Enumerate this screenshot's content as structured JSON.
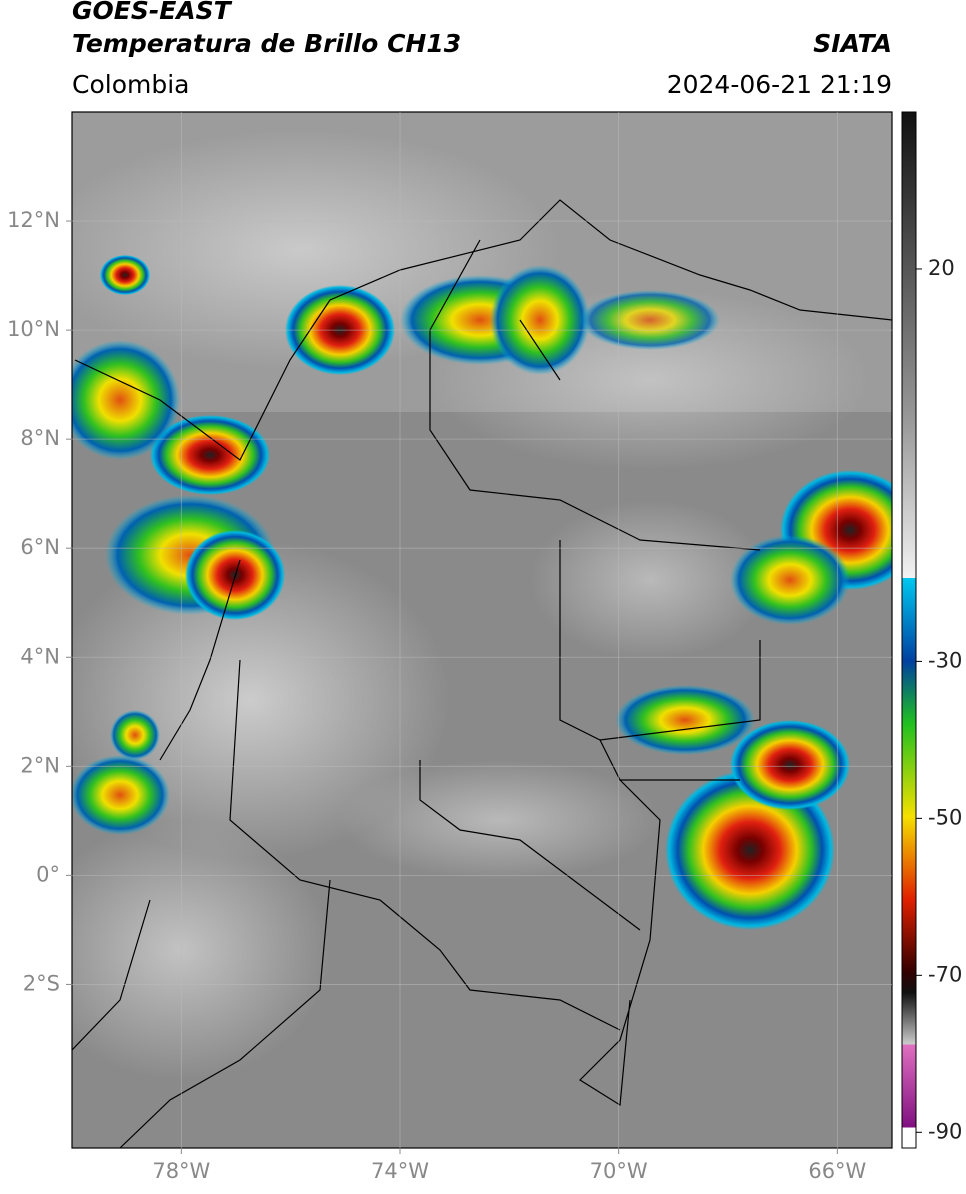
{
  "header": {
    "title": "GOES-EAST",
    "subtitle": "Temperatura de Brillo CH13",
    "region": "Colombia",
    "source": "SIATA",
    "datetime": "2024-06-21 21:19"
  },
  "map": {
    "lonlim": [
      -80,
      -65
    ],
    "latlim": [
      -5,
      14
    ],
    "lon_ticks": [
      {
        "value": -78,
        "label": "78°W"
      },
      {
        "value": -74,
        "label": "74°W"
      },
      {
        "value": -70,
        "label": "70°W"
      },
      {
        "value": -66,
        "label": "66°W"
      }
    ],
    "lat_ticks": [
      {
        "value": 12,
        "label": "12°N"
      },
      {
        "value": 10,
        "label": "10°N"
      },
      {
        "value": 8,
        "label": "8°N"
      },
      {
        "value": 6,
        "label": "6°N"
      },
      {
        "value": 4,
        "label": "4°N"
      },
      {
        "value": 2,
        "label": "2°N"
      },
      {
        "value": 0,
        "label": "0°"
      },
      {
        "value": -2,
        "label": "2°S"
      }
    ],
    "grid": true
  },
  "colorbar": {
    "lim": [
      -92,
      40
    ],
    "ticks": [
      20,
      -30,
      -50,
      -70,
      -90
    ]
  }
}
